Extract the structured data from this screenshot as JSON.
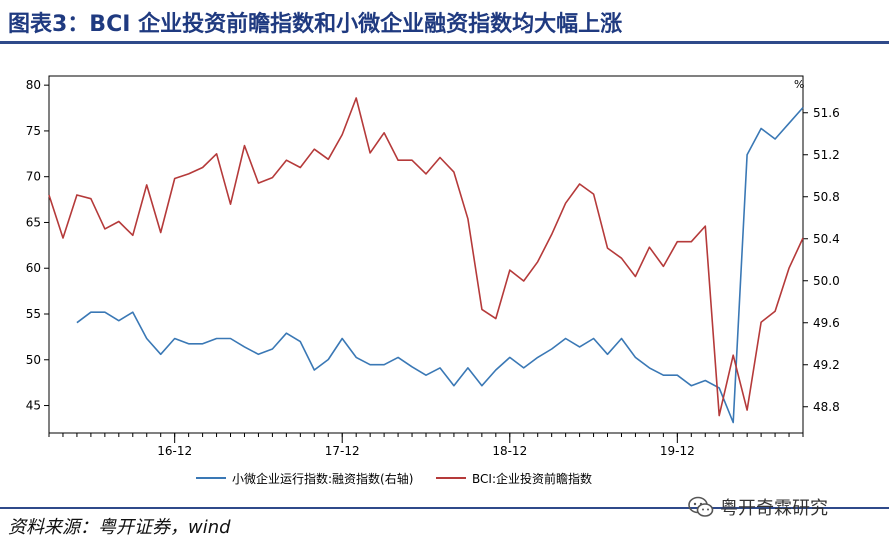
{
  "title": "图表3：BCI 企业投资前瞻指数和小微企业融资指数均大幅上涨",
  "source": "资料来源：粤开证券，wind",
  "watermark": "粤开奇霖研究",
  "colors": {
    "title": "#1f3a80",
    "left_series": "#3a78b5",
    "right_series": "#b53a3a",
    "rule": "#2f4a8a"
  },
  "chart_data": {
    "type": "line",
    "x_tick_labels": [
      "16-12",
      "17-12",
      "18-12",
      "19-12"
    ],
    "y_left": {
      "range": [
        42,
        81
      ],
      "ticks": [
        45,
        50,
        55,
        60,
        65,
        70,
        75,
        80
      ]
    },
    "y_right": {
      "range": [
        48.55,
        51.95
      ],
      "ticks": [
        48.8,
        49.2,
        49.6,
        50.0,
        50.4,
        50.8,
        51.2,
        51.6
      ],
      "unit": "%"
    },
    "series": [
      {
        "name": "小微企业运行指数:融资指数(右轴)",
        "axis": "right",
        "color": "#3a78b5",
        "values": [
          49.6,
          49.7,
          49.7,
          49.62,
          49.7,
          49.45,
          49.3,
          49.45,
          49.4,
          49.4,
          49.45,
          49.45,
          49.37,
          49.3,
          49.35,
          49.5,
          49.42,
          49.15,
          49.25,
          49.45,
          49.27,
          49.2,
          49.2,
          49.27,
          49.18,
          49.1,
          49.17,
          49.0,
          49.17,
          49.0,
          49.15,
          49.27,
          49.17,
          49.27,
          49.35,
          49.45,
          49.37,
          49.45,
          49.3,
          49.45,
          49.27,
          49.17,
          49.1,
          49.1,
          49.0,
          49.05,
          48.98,
          48.65,
          51.2,
          51.45,
          51.35,
          51.5,
          51.65
        ]
      },
      {
        "name": "BCI:企业投资前瞻指数",
        "color": "#b53a3a",
        "axis": "left",
        "values": [
          68.0,
          63.3,
          68.0,
          67.6,
          64.3,
          65.1,
          63.6,
          69.1,
          63.9,
          69.8,
          70.3,
          71.0,
          72.5,
          67.0,
          73.4,
          69.3,
          69.9,
          71.8,
          71.0,
          73.0,
          71.9,
          74.6,
          78.6,
          72.6,
          74.8,
          71.8,
          71.8,
          70.3,
          72.1,
          70.5,
          65.4,
          55.5,
          54.5,
          59.8,
          58.6,
          60.7,
          63.7,
          67.1,
          69.2,
          68.1,
          62.2,
          61.1,
          59.1,
          62.3,
          60.2,
          62.9,
          62.9,
          64.6,
          43.9,
          50.5,
          44.5,
          54.1,
          55.3,
          60.0,
          63.3
        ]
      }
    ]
  }
}
